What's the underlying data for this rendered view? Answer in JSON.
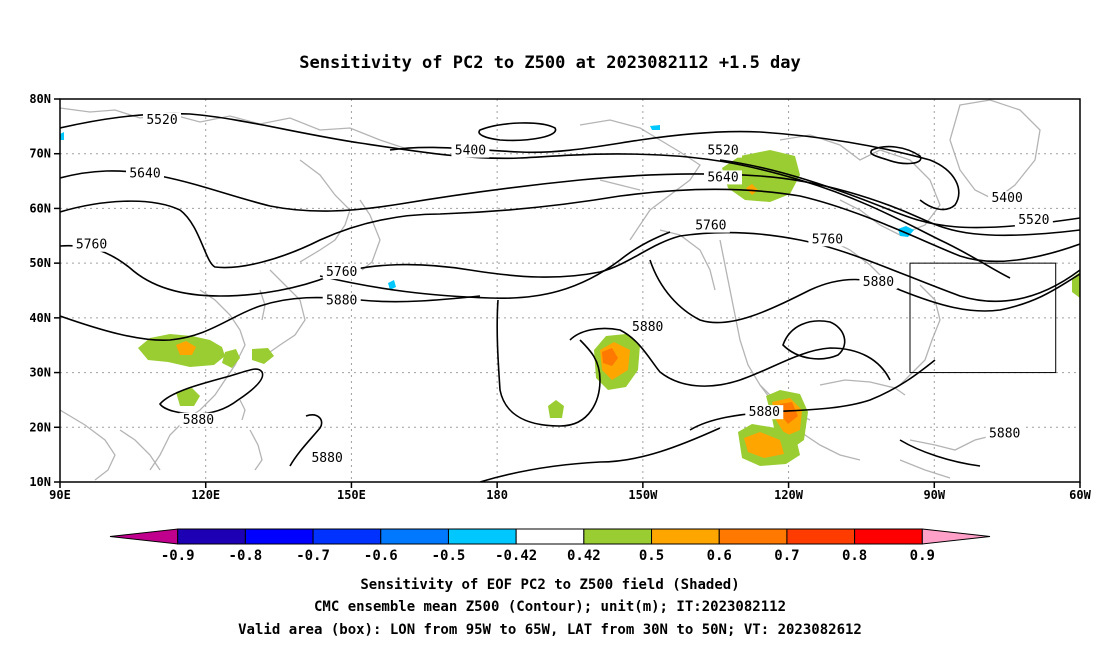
{
  "title": "Sensitivity of PC2 to Z500 at 2023082112 +1.5 day",
  "map": {
    "lon_range": [
      90,
      300
    ],
    "lat_range": [
      10,
      80
    ],
    "lat_ticks": [
      {
        "value": 80,
        "label": "80N"
      },
      {
        "value": 70,
        "label": "70N"
      },
      {
        "value": 60,
        "label": "60N"
      },
      {
        "value": 50,
        "label": "50N"
      },
      {
        "value": 40,
        "label": "40N"
      },
      {
        "value": 30,
        "label": "30N"
      },
      {
        "value": 20,
        "label": "20N"
      },
      {
        "value": 10,
        "label": "10N"
      }
    ],
    "lon_ticks": [
      {
        "value": 90,
        "label": "90E"
      },
      {
        "value": 120,
        "label": "120E"
      },
      {
        "value": 150,
        "label": "150E"
      },
      {
        "value": 180,
        "label": "180"
      },
      {
        "value": 210,
        "label": "150W"
      },
      {
        "value": 240,
        "label": "120W"
      },
      {
        "value": 270,
        "label": "90W"
      },
      {
        "value": 300,
        "label": "60W"
      }
    ],
    "valid_box": {
      "lon": [
        265,
        295
      ],
      "lat": [
        30,
        50
      ]
    },
    "contour_labels": [
      {
        "text": "5520",
        "lon": 111,
        "lat": 75.8
      },
      {
        "text": "5400",
        "lon": 174.5,
        "lat": 70.2
      },
      {
        "text": "5520",
        "lon": 226.5,
        "lat": 70.2
      },
      {
        "text": "5640",
        "lon": 226.5,
        "lat": 65.3
      },
      {
        "text": "5640",
        "lon": 107.5,
        "lat": 66
      },
      {
        "text": "5400",
        "lon": 285,
        "lat": 61.5
      },
      {
        "text": "5520",
        "lon": 290.5,
        "lat": 57.5
      },
      {
        "text": "5760",
        "lon": 96.5,
        "lat": 53
      },
      {
        "text": "5760",
        "lon": 224,
        "lat": 56.5
      },
      {
        "text": "5760",
        "lon": 248,
        "lat": 54
      },
      {
        "text": "5760",
        "lon": 148,
        "lat": 48
      },
      {
        "text": "5880",
        "lon": 148,
        "lat": 42.8
      },
      {
        "text": "5880",
        "lon": 211,
        "lat": 38
      },
      {
        "text": "5880",
        "lon": 258.5,
        "lat": 46.2
      },
      {
        "text": "5880",
        "lon": 118.5,
        "lat": 21
      },
      {
        "text": "5880",
        "lon": 145,
        "lat": 14
      },
      {
        "text": "5880",
        "lon": 235,
        "lat": 22.4
      },
      {
        "text": "5880",
        "lon": 284.5,
        "lat": 18.5
      }
    ]
  },
  "colorbar": {
    "colors": [
      "#c0008c",
      "#1e00b4",
      "#0000ff",
      "#0032ff",
      "#0078ff",
      "#00c8ff",
      "#ffffff",
      "#9acd32",
      "#ffa500",
      "#ff7800",
      "#ff3c00",
      "#ff0000",
      "#ffa0c8"
    ],
    "labels": [
      "-0.9",
      "-0.8",
      "-0.7",
      "-0.6",
      "-0.5",
      "-0.42",
      "0.42",
      "0.5",
      "0.6",
      "0.7",
      "0.8",
      "0.9"
    ]
  },
  "captions": [
    "Sensitivity of EOF PC2 to Z500 field (Shaded)",
    "CMC ensemble mean Z500 (Contour); unit(m); IT:2023082112",
    "Valid area (box): LON from 95W to 65W, LAT from 30N to 50N; VT: 2023082612"
  ],
  "colors": {
    "coastline": "#b4b4b4",
    "grid": "#a0a0a0",
    "contour": "#000000",
    "shade_green": "#9acd32",
    "shade_orange": "#ffa500",
    "shade_dark_orange": "#ff7800",
    "shade_blue": "#00c8ff"
  }
}
